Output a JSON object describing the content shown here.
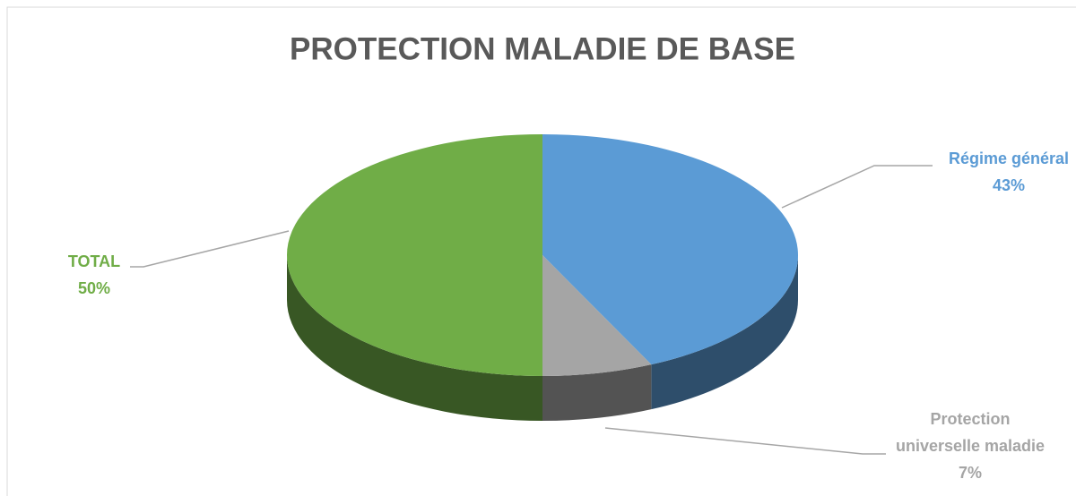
{
  "chart_data": {
    "type": "pie",
    "title": "PROTECTION MALADIE DE BASE",
    "categories": [
      "Régime général",
      "Protection universelle maladie",
      "TOTAL"
    ],
    "values": [
      43,
      7,
      50
    ],
    "value_labels": [
      "43%",
      "7%",
      "50%"
    ],
    "colors": [
      "#5b9bd5",
      "#a5a5a5",
      "#70ad47"
    ]
  }
}
